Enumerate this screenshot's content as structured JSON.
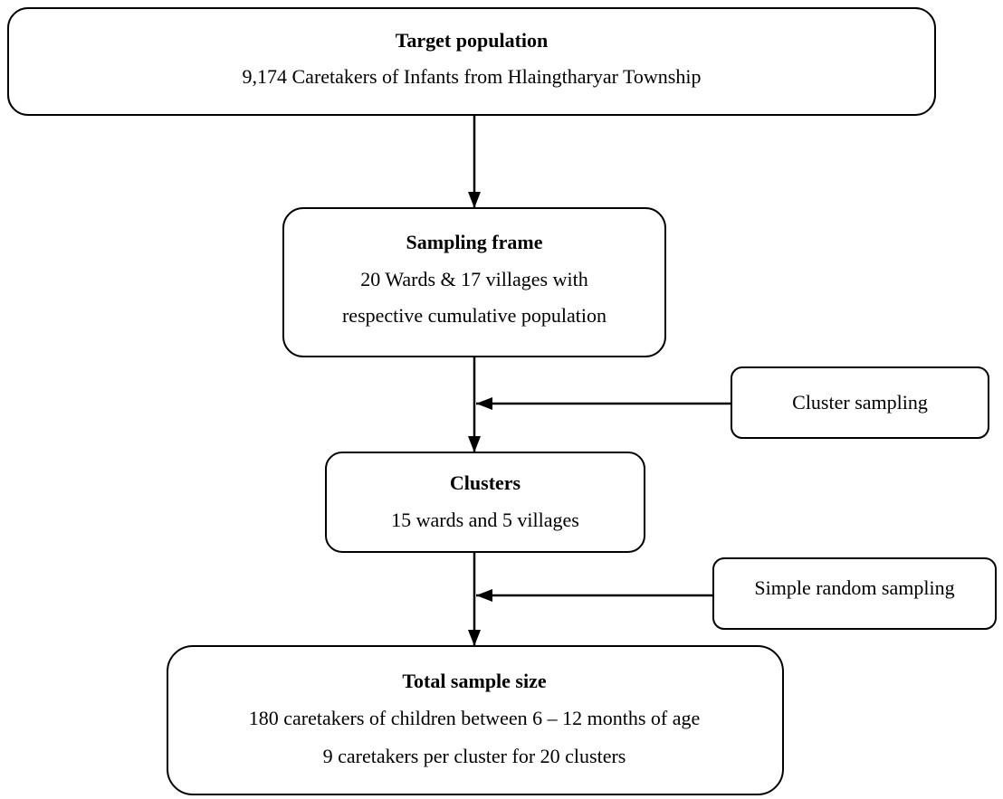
{
  "nodes": [
    {
      "title": "Target population",
      "lines": [
        "9,174 Caretakers of Infants from Hlaingtharyar Township"
      ]
    },
    {
      "title": "Sampling frame",
      "lines": [
        "20 Wards & 17 villages with",
        "respective cumulative population"
      ]
    },
    {
      "title": "Clusters",
      "lines": [
        "15 wards and 5 villages"
      ]
    },
    {
      "title": "Total sample size",
      "lines": [
        "180 caretakers of children between 6 – 12 months of age",
        "9 caretakers per cluster for 20 clusters"
      ]
    }
  ],
  "methods": [
    "Cluster sampling",
    "Simple random sampling"
  ]
}
